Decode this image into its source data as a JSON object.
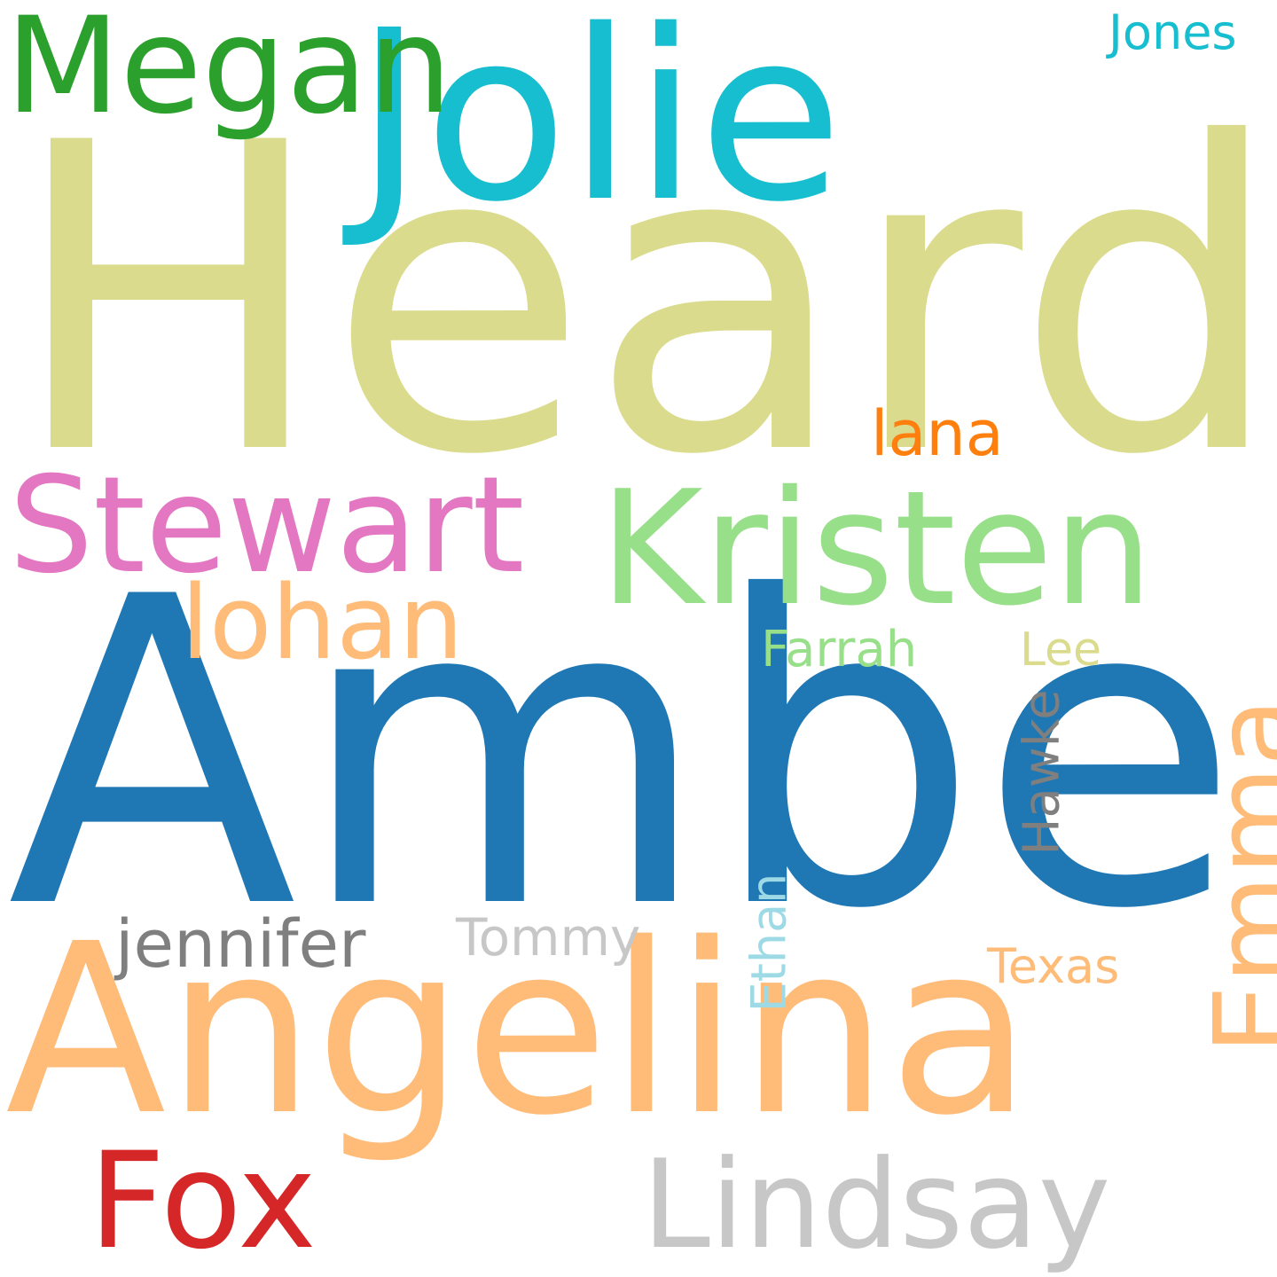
{
  "words": [
    {
      "id": "heard",
      "text": "Heard",
      "color": "#dbdb8d"
    },
    {
      "id": "amber",
      "text": "Amber",
      "color": "#1f77b4"
    },
    {
      "id": "jolie",
      "text": "Jolie",
      "color": "#17becf"
    },
    {
      "id": "angelina",
      "text": "Angelina",
      "color": "#ffbb78"
    },
    {
      "id": "kristen",
      "text": "Kristen",
      "color": "#98df8a"
    },
    {
      "id": "megan",
      "text": "Megan",
      "color": "#2ca02c"
    },
    {
      "id": "stewart",
      "text": "Stewart",
      "color": "#e377c2"
    },
    {
      "id": "lohan",
      "text": "lohan",
      "color": "#ffbb78"
    },
    {
      "id": "fox",
      "text": "Fox",
      "color": "#d62728"
    },
    {
      "id": "lindsay",
      "text": "Lindsay",
      "color": "#c7c7c7"
    },
    {
      "id": "emma",
      "text": "Emma",
      "color": "#ffbb78",
      "orientation": "vertical"
    },
    {
      "id": "lana",
      "text": "lana",
      "color": "#ff7f0e"
    },
    {
      "id": "jennifer",
      "text": "jennifer",
      "color": "#7f7f7f"
    },
    {
      "id": "tommy",
      "text": "Tommy",
      "color": "#c7c7c7"
    },
    {
      "id": "farrah",
      "text": "Farrah",
      "color": "#98df8a"
    },
    {
      "id": "lee",
      "text": "Lee",
      "color": "#dbdb8d"
    },
    {
      "id": "hawke",
      "text": "Hawke",
      "color": "#7f7f7f",
      "orientation": "vertical"
    },
    {
      "id": "ethan",
      "text": "Ethan",
      "color": "#9edae5",
      "orientation": "vertical"
    },
    {
      "id": "texas",
      "text": "Texas",
      "color": "#ffbb78"
    },
    {
      "id": "jones",
      "text": "Jones",
      "color": "#17becf"
    }
  ]
}
